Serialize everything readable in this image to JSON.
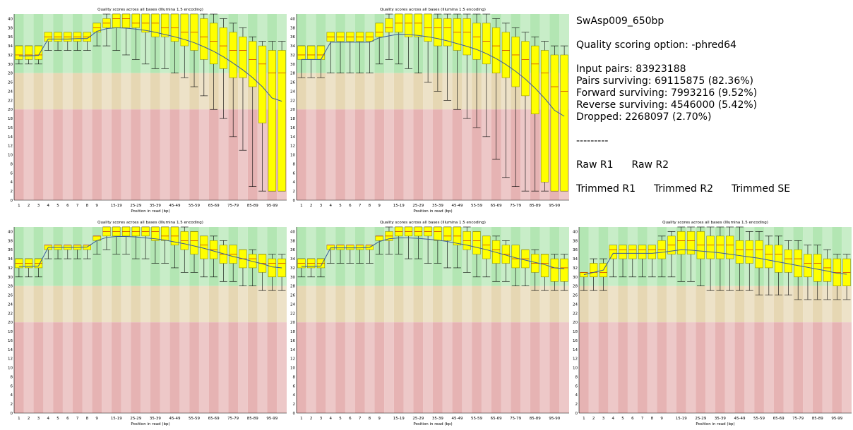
{
  "info": {
    "sample_name": "SwAsp009_650bp",
    "scoring_option": "Quality scoring option: -phred64",
    "input_pairs": "Input pairs: 83923188",
    "pairs_surviving": "Pairs surviving: 69115875 (82.36%)",
    "forward_surviving": "Forward surviving: 7993216 (9.52%)",
    "reverse_surviving": "Reverse surviving: 4546000 (5.42%)",
    "dropped": "Dropped: 2268097 (2.70%)",
    "separator": "---------",
    "links_raw": [
      "Raw R1",
      "Raw R2"
    ],
    "links_trimmed": [
      "Trimmed R1",
      "Trimmed R2",
      "Trimmed SE"
    ]
  },
  "colors": {
    "good_zone": "#b3e6b3",
    "ok_zone": "#e6d7b3",
    "poor_zone": "#e6b3b3",
    "box_fill": "#ffff00",
    "box_stroke": "#808000",
    "mean_line": "#3b5b9b",
    "whisker": "#000000"
  },
  "chart_data": [
    {
      "type": "box",
      "title": "Quality scores across all bases (Illumina 1.5 encoding)",
      "xlabel": "Position in read (bp)",
      "ylim": [
        0,
        40
      ],
      "yticks": [
        0,
        2,
        4,
        6,
        8,
        10,
        12,
        14,
        16,
        18,
        20,
        22,
        24,
        26,
        28,
        30,
        32,
        34,
        36,
        38,
        40
      ],
      "zones": {
        "green": [
          28,
          41
        ],
        "orange": [
          20,
          28
        ],
        "red": [
          0,
          20
        ]
      },
      "categories": [
        "1",
        "2",
        "3",
        "4",
        "5",
        "6",
        "7",
        "8",
        "9",
        "10-14",
        "15-19",
        "20-24",
        "25-29",
        "30-34",
        "35-39",
        "40-44",
        "45-49",
        "50-54",
        "55-59",
        "60-64",
        "65-69",
        "70-74",
        "75-79",
        "80-84",
        "85-89",
        "90-94",
        "95-99",
        "100"
      ],
      "xticks": [
        "1",
        "2",
        "3",
        "4",
        "5",
        "6",
        "7",
        "8",
        "9",
        "15-19",
        "25-29",
        "35-39",
        "45-49",
        "55-59",
        "65-69",
        "75-79",
        "85-89",
        "95-99"
      ],
      "q1": [
        31,
        31,
        31,
        35,
        35,
        35,
        35,
        35,
        37,
        38,
        38,
        38,
        38,
        37,
        36,
        36,
        35,
        34,
        33,
        31,
        30,
        29,
        27,
        27,
        25,
        17,
        2,
        2
      ],
      "median": [
        32,
        32,
        32,
        36,
        36,
        36,
        36,
        36,
        38,
        39,
        40,
        40,
        39,
        39,
        39,
        38,
        38,
        37,
        37,
        36,
        35,
        34,
        33,
        33,
        31,
        30,
        28,
        28
      ],
      "q3": [
        34,
        34,
        34,
        37,
        37,
        37,
        37,
        37,
        39,
        40,
        41,
        41,
        41,
        41,
        41,
        41,
        41,
        41,
        41,
        40,
        39,
        38,
        37,
        36,
        35,
        34,
        33,
        33
      ],
      "lower": [
        30,
        30,
        30,
        33,
        33,
        33,
        33,
        33,
        34,
        34,
        33,
        32,
        31,
        30,
        29,
        29,
        28,
        27,
        25,
        23,
        20,
        18,
        14,
        11,
        3,
        2,
        2,
        2
      ],
      "upper": [
        34,
        34,
        34,
        37,
        37,
        37,
        37,
        37,
        39,
        41,
        41,
        41,
        41,
        41,
        41,
        41,
        41,
        41,
        41,
        41,
        41,
        40,
        39,
        38,
        36,
        35,
        35,
        35
      ],
      "mean": [
        31.8,
        31.8,
        31.9,
        35.5,
        35.5,
        35.5,
        35.6,
        35.6,
        37.2,
        37.8,
        38.0,
        37.9,
        37.7,
        37.4,
        37.0,
        36.5,
        36.0,
        35.4,
        34.7,
        33.8,
        32.8,
        31.6,
        30.2,
        28.7,
        27.0,
        25.0,
        22.5,
        21.8
      ]
    },
    {
      "type": "box",
      "title": "Quality scores across all bases (Illumina 1.5 encoding)",
      "xlabel": "Position in read (bp)",
      "ylim": [
        0,
        40
      ],
      "yticks": [
        0,
        2,
        4,
        6,
        8,
        10,
        12,
        14,
        16,
        18,
        20,
        22,
        24,
        26,
        28,
        30,
        32,
        34,
        36,
        38,
        40
      ],
      "zones": {
        "green": [
          28,
          41
        ],
        "orange": [
          20,
          28
        ],
        "red": [
          0,
          20
        ]
      },
      "categories": [
        "1",
        "2",
        "3",
        "4",
        "5",
        "6",
        "7",
        "8",
        "9",
        "10-14",
        "15-19",
        "20-24",
        "25-29",
        "30-34",
        "35-39",
        "40-44",
        "45-49",
        "50-54",
        "55-59",
        "60-64",
        "65-69",
        "70-74",
        "75-79",
        "80-84",
        "85-89",
        "90-94",
        "95-99",
        "100"
      ],
      "xticks": [
        "1",
        "2",
        "3",
        "4",
        "5",
        "6",
        "7",
        "8",
        "9",
        "15-19",
        "25-29",
        "35-39",
        "45-49",
        "55-59",
        "65-69",
        "75-79",
        "85-89",
        "95-99"
      ],
      "q1": [
        31,
        31,
        31,
        35,
        35,
        35,
        35,
        35,
        36,
        37,
        37,
        36,
        36,
        35,
        34,
        34,
        33,
        32,
        31,
        30,
        28,
        27,
        25,
        23,
        19,
        4,
        2,
        2
      ],
      "median": [
        32,
        32,
        32,
        36,
        36,
        36,
        36,
        36,
        37,
        38,
        39,
        39,
        39,
        38,
        38,
        38,
        37,
        37,
        36,
        35,
        34,
        33,
        32,
        31,
        30,
        28,
        25,
        24
      ],
      "q3": [
        34,
        34,
        34,
        37,
        37,
        37,
        37,
        37,
        39,
        40,
        41,
        41,
        41,
        41,
        40,
        40,
        40,
        40,
        39,
        39,
        38,
        37,
        36,
        35,
        34,
        33,
        32,
        32
      ],
      "lower": [
        27,
        27,
        27,
        28,
        28,
        28,
        28,
        28,
        30,
        31,
        30,
        29,
        28,
        26,
        24,
        22,
        20,
        18,
        16,
        14,
        9,
        5,
        3,
        2,
        2,
        2,
        2,
        2
      ],
      "upper": [
        34,
        34,
        34,
        37,
        37,
        37,
        37,
        37,
        39,
        41,
        41,
        41,
        41,
        41,
        41,
        41,
        41,
        41,
        41,
        41,
        40,
        39,
        38,
        37,
        36,
        35,
        34,
        34
      ],
      "mean": [
        31.0,
        31.0,
        31.0,
        34.8,
        34.8,
        34.8,
        34.8,
        34.8,
        35.8,
        36.2,
        36.6,
        36.5,
        36.3,
        36.0,
        35.6,
        35.1,
        34.5,
        33.9,
        33.2,
        32.3,
        31.2,
        29.9,
        28.4,
        26.7,
        24.7,
        22.4,
        19.8,
        18.5
      ]
    },
    {
      "type": "box",
      "title": "Quality scores across all bases (Illumina 1.5 encoding)",
      "xlabel": "Position in read (bp)",
      "ylim": [
        0,
        40
      ],
      "yticks": [
        0,
        2,
        4,
        6,
        8,
        10,
        12,
        14,
        16,
        18,
        20,
        22,
        24,
        26,
        28,
        30,
        32,
        34,
        36,
        38,
        40
      ],
      "zones": {
        "green": [
          28,
          41
        ],
        "orange": [
          20,
          28
        ],
        "red": [
          0,
          20
        ]
      },
      "categories": [
        "1",
        "2",
        "3",
        "4",
        "5",
        "6",
        "7",
        "8",
        "9",
        "10-14",
        "15-19",
        "20-24",
        "25-29",
        "30-34",
        "35-39",
        "40-44",
        "45-49",
        "50-54",
        "55-59",
        "60-64",
        "65-69",
        "70-74",
        "75-79",
        "80-84",
        "85-89",
        "90-94",
        "95-99",
        "100"
      ],
      "xticks": [
        "1",
        "2",
        "3",
        "4",
        "5",
        "6",
        "7",
        "8",
        "9",
        "15-19",
        "25-29",
        "35-39",
        "45-49",
        "55-59",
        "65-69",
        "75-79",
        "85-89",
        "95-99"
      ],
      "q1": [
        32,
        32,
        32,
        36,
        36,
        36,
        36,
        36,
        38,
        39,
        39,
        39,
        39,
        39,
        38,
        38,
        37,
        36,
        35,
        34,
        34,
        33,
        33,
        32,
        32,
        31,
        30,
        30
      ],
      "median": [
        33,
        33,
        33,
        37,
        37,
        37,
        37,
        37,
        39,
        40,
        40,
        40,
        40,
        40,
        40,
        39,
        39,
        38,
        38,
        37,
        36,
        35,
        35,
        34,
        34,
        33,
        33,
        33
      ],
      "q3": [
        34,
        34,
        34,
        37,
        37,
        37,
        37,
        37,
        39,
        41,
        41,
        41,
        41,
        41,
        41,
        41,
        41,
        40,
        40,
        39,
        38,
        37,
        37,
        36,
        35,
        35,
        34,
        34
      ],
      "lower": [
        30,
        30,
        30,
        34,
        34,
        34,
        34,
        34,
        35,
        36,
        35,
        35,
        34,
        34,
        33,
        33,
        32,
        31,
        31,
        30,
        30,
        29,
        29,
        28,
        28,
        27,
        27,
        27
      ],
      "upper": [
        34,
        34,
        34,
        37,
        37,
        37,
        37,
        37,
        39,
        41,
        41,
        41,
        41,
        41,
        41,
        41,
        41,
        41,
        40,
        39,
        39,
        38,
        37,
        36,
        36,
        35,
        35,
        35
      ],
      "mean": [
        32.3,
        32.3,
        32.4,
        36.5,
        36.5,
        36.5,
        36.5,
        36.6,
        38.0,
        38.7,
        38.9,
        38.9,
        38.8,
        38.6,
        38.4,
        38.1,
        37.7,
        37.3,
        36.8,
        36.3,
        35.7,
        35.1,
        34.5,
        34.0,
        33.4,
        32.9,
        32.2,
        32.0
      ]
    },
    {
      "type": "box",
      "title": "Quality scores across all bases (Illumina 1.5 encoding)",
      "xlabel": "Position in read (bp)",
      "ylim": [
        0,
        40
      ],
      "yticks": [
        0,
        2,
        4,
        6,
        8,
        10,
        12,
        14,
        16,
        18,
        20,
        22,
        24,
        26,
        28,
        30,
        32,
        34,
        36,
        38,
        40
      ],
      "zones": {
        "green": [
          28,
          41
        ],
        "orange": [
          20,
          28
        ],
        "red": [
          0,
          20
        ]
      },
      "categories": [
        "1",
        "2",
        "3",
        "4",
        "5",
        "6",
        "7",
        "8",
        "9",
        "10-14",
        "15-19",
        "20-24",
        "25-29",
        "30-34",
        "35-39",
        "40-44",
        "45-49",
        "50-54",
        "55-59",
        "60-64",
        "65-69",
        "70-74",
        "75-79",
        "80-84",
        "85-89",
        "90-94",
        "95-99",
        "100"
      ],
      "xticks": [
        "1",
        "2",
        "3",
        "4",
        "5",
        "6",
        "7",
        "8",
        "9",
        "15-19",
        "25-29",
        "35-39",
        "45-49",
        "55-59",
        "65-69",
        "75-79",
        "85-89",
        "95-99"
      ],
      "q1": [
        32,
        32,
        32,
        36,
        36,
        36,
        36,
        36,
        38,
        38,
        39,
        39,
        39,
        39,
        38,
        38,
        37,
        36,
        35,
        34,
        33,
        33,
        32,
        32,
        31,
        30,
        29,
        29
      ],
      "median": [
        33,
        33,
        33,
        37,
        37,
        37,
        37,
        37,
        39,
        39,
        40,
        40,
        40,
        40,
        40,
        39,
        39,
        38,
        38,
        37,
        36,
        35,
        34,
        34,
        33,
        33,
        32,
        32
      ],
      "q3": [
        34,
        34,
        34,
        37,
        37,
        37,
        37,
        37,
        39,
        40,
        41,
        41,
        41,
        41,
        41,
        41,
        41,
        40,
        40,
        39,
        38,
        37,
        37,
        36,
        35,
        35,
        34,
        34
      ],
      "lower": [
        30,
        30,
        30,
        33,
        33,
        33,
        33,
        33,
        35,
        35,
        35,
        34,
        34,
        33,
        33,
        32,
        32,
        31,
        30,
        30,
        29,
        29,
        28,
        28,
        27,
        27,
        27,
        27
      ],
      "upper": [
        34,
        34,
        34,
        37,
        37,
        37,
        37,
        37,
        39,
        41,
        41,
        41,
        41,
        41,
        41,
        41,
        41,
        41,
        40,
        39,
        39,
        38,
        37,
        36,
        36,
        35,
        35,
        35
      ],
      "mean": [
        32.3,
        32.3,
        32.4,
        36.4,
        36.4,
        36.4,
        36.4,
        36.5,
        37.8,
        38.4,
        38.6,
        38.6,
        38.5,
        38.3,
        38.1,
        37.8,
        37.4,
        37.0,
        36.5,
        36.0,
        35.4,
        34.8,
        34.2,
        33.7,
        33.2,
        32.7,
        32.0,
        31.8
      ]
    },
    {
      "type": "box",
      "title": "Quality scores across all bases (Illumina 1.5 encoding)",
      "xlabel": "Position in read (bp)",
      "ylim": [
        0,
        40
      ],
      "yticks": [
        0,
        2,
        4,
        6,
        8,
        10,
        12,
        14,
        16,
        18,
        20,
        22,
        24,
        26,
        28,
        30,
        32,
        34,
        36,
        38,
        40
      ],
      "zones": {
        "green": [
          28,
          41
        ],
        "orange": [
          20,
          28
        ],
        "red": [
          0,
          20
        ]
      },
      "categories": [
        "1",
        "2",
        "3",
        "4",
        "5",
        "6",
        "7",
        "8",
        "9",
        "10-14",
        "15-19",
        "20-24",
        "25-29",
        "30-34",
        "35-39",
        "40-44",
        "45-49",
        "50-54",
        "55-59",
        "60-64",
        "65-69",
        "70-74",
        "75-79",
        "80-84",
        "85-89",
        "90-94",
        "95-99",
        "100"
      ],
      "xticks": [
        "1",
        "2",
        "3",
        "4",
        "5",
        "6",
        "7",
        "8",
        "9",
        "15-19",
        "25-29",
        "35-39",
        "45-49",
        "55-59",
        "65-69",
        "75-79",
        "85-89",
        "95-99"
      ],
      "q1": [
        30,
        30,
        30,
        34,
        34,
        34,
        34,
        34,
        34,
        35,
        35,
        35,
        34,
        34,
        34,
        34,
        33,
        33,
        32,
        32,
        31,
        31,
        30,
        30,
        29,
        29,
        28,
        28
      ],
      "median": [
        31,
        31,
        31,
        36,
        36,
        36,
        36,
        36,
        36,
        37,
        38,
        38,
        37,
        37,
        37,
        37,
        36,
        36,
        36,
        35,
        35,
        34,
        34,
        33,
        33,
        32,
        31,
        31
      ],
      "q3": [
        31,
        33,
        33,
        37,
        37,
        37,
        37,
        37,
        38,
        39,
        40,
        40,
        40,
        39,
        39,
        39,
        38,
        38,
        38,
        37,
        37,
        36,
        36,
        35,
        35,
        34,
        34,
        34
      ],
      "lower": [
        27,
        27,
        27,
        30,
        30,
        30,
        30,
        30,
        30,
        30,
        29,
        29,
        28,
        27,
        27,
        27,
        27,
        27,
        26,
        26,
        26,
        26,
        25,
        25,
        25,
        25,
        25,
        25
      ],
      "upper": [
        31,
        34,
        34,
        37,
        37,
        37,
        37,
        37,
        39,
        40,
        41,
        41,
        41,
        41,
        41,
        41,
        41,
        40,
        40,
        39,
        39,
        38,
        38,
        37,
        37,
        36,
        35,
        35
      ],
      "mean": [
        30.5,
        31.0,
        31.5,
        35.2,
        35.2,
        35.2,
        35.2,
        35.2,
        35.4,
        35.7,
        36.0,
        35.9,
        35.7,
        35.5,
        35.3,
        35.0,
        34.7,
        34.4,
        34.1,
        33.7,
        33.3,
        32.9,
        32.5,
        32.1,
        31.7,
        31.3,
        30.8,
        30.6
      ]
    }
  ]
}
